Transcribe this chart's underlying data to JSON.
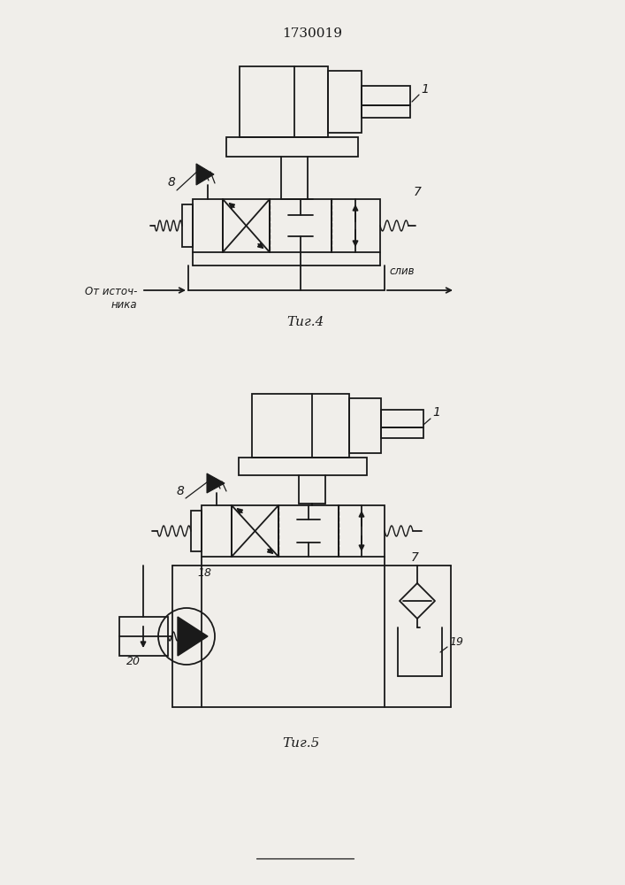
{
  "title": "1730019",
  "fig4_label": "Τиг.4",
  "fig5_label": "Τиг.5",
  "label_1a": "1",
  "label_7a": "7",
  "label_8a": "8",
  "label_1b": "1",
  "label_7b": "7",
  "label_8b": "8",
  "label_18": "18",
  "label_19": "19",
  "label_20": "20",
  "from_source": "От источ-\nника",
  "drain": "слив",
  "line_color": "#1a1a1a",
  "bg_color": "#f0eeea"
}
